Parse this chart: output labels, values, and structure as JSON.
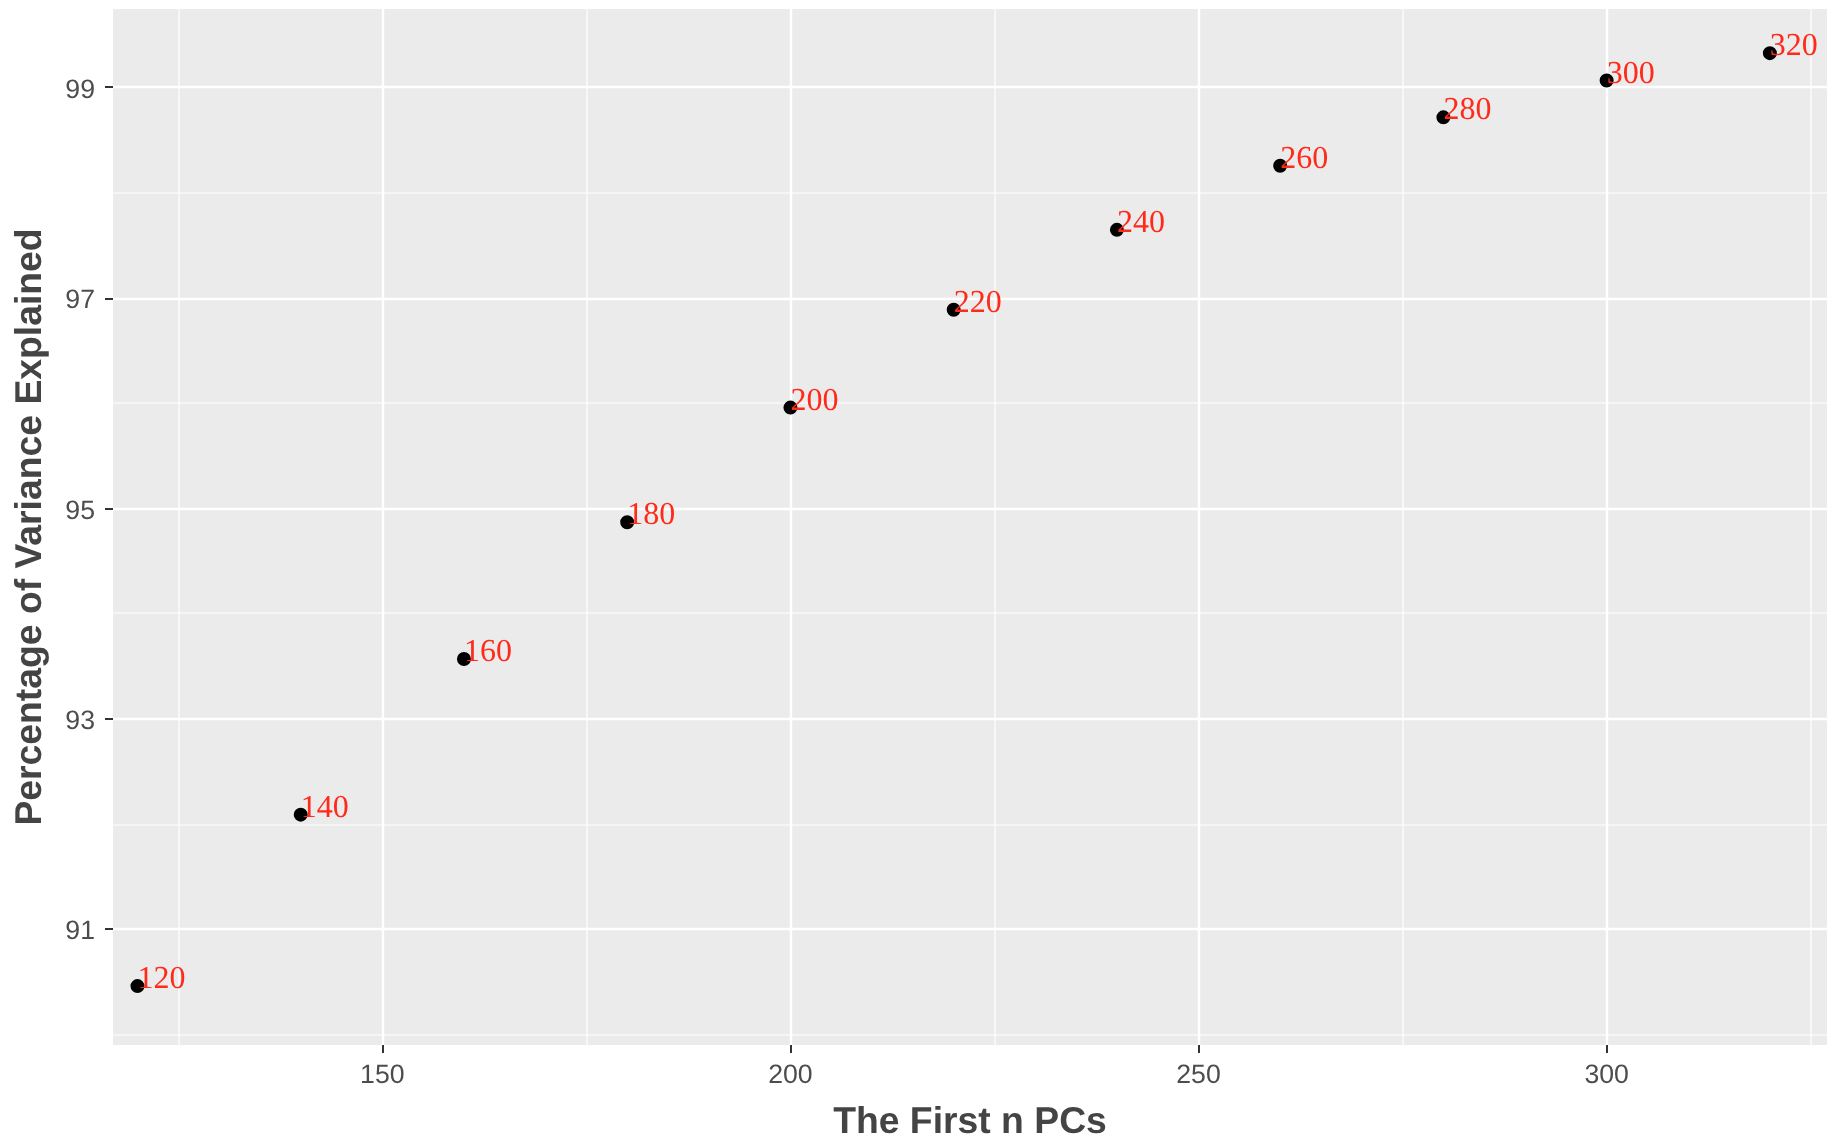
{
  "chart_data": {
    "type": "scatter",
    "xlabel": "The First n PCs",
    "ylabel": "Percentage of Variance Explained",
    "x": [
      120,
      140,
      160,
      180,
      200,
      220,
      240,
      260,
      280,
      300,
      320
    ],
    "series": [
      {
        "color": "#000000",
        "values": [
          90.46,
          92.09,
          93.57,
          94.87,
          95.96,
          96.89,
          97.65,
          98.26,
          98.72,
          99.07,
          99.33
        ]
      }
    ],
    "annotations": [
      {
        "text": "120",
        "x": 120,
        "y": 90.46
      },
      {
        "text": "140",
        "x": 140,
        "y": 92.09
      },
      {
        "text": "160",
        "x": 160,
        "y": 93.57
      },
      {
        "text": "180",
        "x": 180,
        "y": 94.87
      },
      {
        "text": "200",
        "x": 200,
        "y": 95.96
      },
      {
        "text": "220",
        "x": 220,
        "y": 96.89
      },
      {
        "text": "240",
        "x": 240,
        "y": 97.65
      },
      {
        "text": "260",
        "x": 260,
        "y": 98.26
      },
      {
        "text": "280",
        "x": 280,
        "y": 98.72
      },
      {
        "text": "300",
        "x": 300,
        "y": 99.07
      },
      {
        "text": "320",
        "x": 320,
        "y": 99.33
      }
    ],
    "xlim": [
      117,
      327
    ],
    "ylim": [
      89.9,
      99.75
    ],
    "xticks": [
      {
        "value": 125,
        "label": null
      },
      150,
      {
        "value": 175,
        "label": null
      },
      200,
      {
        "value": 225,
        "label": null
      },
      250,
      {
        "value": 275,
        "label": null
      },
      300,
      {
        "value": 325,
        "label": null
      }
    ],
    "yticks": [
      {
        "value": 90,
        "label": null
      },
      91,
      {
        "value": 92,
        "label": null
      },
      93,
      {
        "value": 94,
        "label": null
      },
      95,
      {
        "value": 96,
        "label": null
      },
      97,
      {
        "value": 98,
        "label": null
      },
      99
    ],
    "grid": true,
    "marker": "circle"
  }
}
